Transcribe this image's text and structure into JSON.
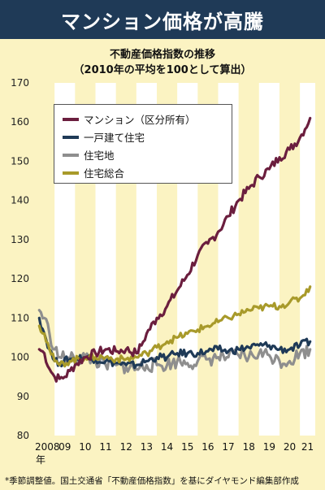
{
  "header": {
    "banner_title": "マンション価格が高騰",
    "subtitle_line1": "不動産価格指数の推移",
    "subtitle_line2": "（2010年の平均を100として算出）",
    "footnote": "*季節調整値。国土交通省「不動産価格指数」を基にダイヤモンド編集部作成"
  },
  "colors": {
    "banner_bg": "#1f3a57",
    "background": "#fbf3c2",
    "stripe": "#ffffff",
    "condo": "#6b1e3e",
    "house": "#1f3a57",
    "land": "#8e8e8e",
    "total": "#a89a2a"
  },
  "chart_data": {
    "type": "line",
    "title": "不動産価格指数の推移",
    "subtitle": "（2010年の平均を100として算出）",
    "xlabel": "",
    "ylabel": "",
    "x_tick_labels": [
      "2008",
      "09",
      "10",
      "11",
      "12",
      "13",
      "14",
      "15",
      "16",
      "17",
      "18",
      "19",
      "20",
      "21"
    ],
    "x_tick_unit": "年",
    "y_ticks": [
      80,
      90,
      100,
      110,
      120,
      130,
      140,
      150,
      160,
      170
    ],
    "ylim": [
      80,
      170
    ],
    "xlim": [
      2008.0,
      2021.75
    ],
    "grid": "alternating yearly vertical bands",
    "legend_position": "top-left",
    "series": [
      {
        "name": "マンション（区分所有）",
        "color_key": "condo",
        "points": [
          [
            2008.25,
            102
          ],
          [
            2008.5,
            101
          ],
          [
            2008.75,
            97
          ],
          [
            2009.0,
            95
          ],
          [
            2009.25,
            94.5
          ],
          [
            2009.5,
            95
          ],
          [
            2009.75,
            96.5
          ],
          [
            2010.0,
            98
          ],
          [
            2010.5,
            100
          ],
          [
            2011.0,
            101
          ],
          [
            2011.5,
            102
          ],
          [
            2012.0,
            101.5
          ],
          [
            2012.5,
            102
          ],
          [
            2013.0,
            101
          ],
          [
            2013.25,
            103
          ],
          [
            2013.5,
            106
          ],
          [
            2014.0,
            110
          ],
          [
            2014.5,
            113
          ],
          [
            2015.0,
            117
          ],
          [
            2015.5,
            121
          ],
          [
            2016.0,
            126
          ],
          [
            2016.5,
            129
          ],
          [
            2017.0,
            132
          ],
          [
            2017.5,
            136
          ],
          [
            2018.0,
            140
          ],
          [
            2018.5,
            143
          ],
          [
            2019.0,
            146
          ],
          [
            2019.5,
            148
          ],
          [
            2020.0,
            151
          ],
          [
            2020.5,
            153
          ],
          [
            2021.0,
            156
          ],
          [
            2021.5,
            161
          ]
        ]
      },
      {
        "name": "一戸建て住宅",
        "color_key": "house",
        "points": [
          [
            2008.25,
            110
          ],
          [
            2008.5,
            106
          ],
          [
            2008.75,
            102
          ],
          [
            2009.0,
            99
          ],
          [
            2009.25,
            98.5
          ],
          [
            2009.75,
            99.5
          ],
          [
            2010.5,
            100
          ],
          [
            2011.0,
            99.5
          ],
          [
            2011.5,
            99
          ],
          [
            2012.0,
            98.5
          ],
          [
            2012.5,
            98
          ],
          [
            2013.0,
            98
          ],
          [
            2013.5,
            99
          ],
          [
            2014.0,
            100
          ],
          [
            2014.5,
            100
          ],
          [
            2015.0,
            101
          ],
          [
            2015.5,
            101
          ],
          [
            2016.0,
            101
          ],
          [
            2016.5,
            101.5
          ],
          [
            2017.0,
            102
          ],
          [
            2017.5,
            101.5
          ],
          [
            2018.0,
            102
          ],
          [
            2018.5,
            102.5
          ],
          [
            2019.0,
            103
          ],
          [
            2019.5,
            103
          ],
          [
            2020.0,
            102
          ],
          [
            2020.5,
            102
          ],
          [
            2021.0,
            103
          ],
          [
            2021.5,
            104
          ]
        ]
      },
      {
        "name": "住宅地",
        "color_key": "land",
        "points": [
          [
            2008.25,
            112
          ],
          [
            2008.5,
            110
          ],
          [
            2008.75,
            106
          ],
          [
            2009.0,
            102
          ],
          [
            2009.25,
            100
          ],
          [
            2009.75,
            99.5
          ],
          [
            2010.5,
            100
          ],
          [
            2011.0,
            99
          ],
          [
            2011.5,
            98
          ],
          [
            2012.0,
            98
          ],
          [
            2012.5,
            97.5
          ],
          [
            2013.0,
            97
          ],
          [
            2013.5,
            98
          ],
          [
            2014.0,
            98
          ],
          [
            2014.5,
            98
          ],
          [
            2015.0,
            99
          ],
          [
            2015.5,
            98.5
          ],
          [
            2016.0,
            99
          ],
          [
            2016.5,
            99.5
          ],
          [
            2017.0,
            100
          ],
          [
            2017.5,
            100
          ],
          [
            2018.0,
            100.5
          ],
          [
            2018.5,
            100
          ],
          [
            2019.0,
            101
          ],
          [
            2019.5,
            100.5
          ],
          [
            2020.0,
            99
          ],
          [
            2020.5,
            99
          ],
          [
            2021.0,
            101
          ],
          [
            2021.5,
            102
          ]
        ]
      },
      {
        "name": "住宅総合",
        "color_key": "total",
        "points": [
          [
            2008.25,
            108
          ],
          [
            2008.5,
            106
          ],
          [
            2008.75,
            102
          ],
          [
            2009.0,
            99
          ],
          [
            2009.25,
            98
          ],
          [
            2009.75,
            99
          ],
          [
            2010.5,
            100
          ],
          [
            2011.0,
            100
          ],
          [
            2011.5,
            100
          ],
          [
            2012.0,
            99.5
          ],
          [
            2012.5,
            99.5
          ],
          [
            2013.0,
            100
          ],
          [
            2013.5,
            101
          ],
          [
            2014.0,
            102.5
          ],
          [
            2014.5,
            104
          ],
          [
            2015.0,
            105
          ],
          [
            2015.5,
            106
          ],
          [
            2016.0,
            107
          ],
          [
            2016.5,
            108
          ],
          [
            2017.0,
            109
          ],
          [
            2017.5,
            110
          ],
          [
            2018.0,
            111
          ],
          [
            2018.5,
            112
          ],
          [
            2019.0,
            112.5
          ],
          [
            2019.5,
            113
          ],
          [
            2020.0,
            113
          ],
          [
            2020.5,
            114
          ],
          [
            2021.0,
            115
          ],
          [
            2021.5,
            118
          ]
        ]
      }
    ]
  }
}
